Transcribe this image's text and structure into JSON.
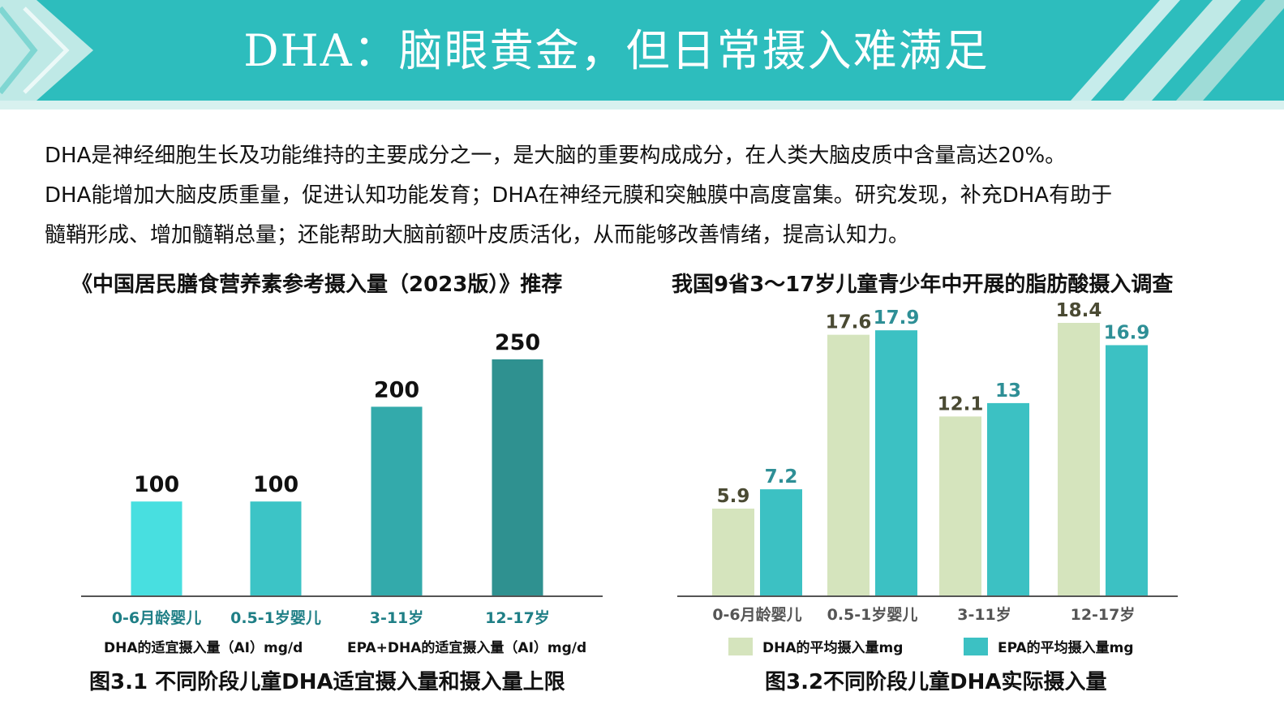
{
  "header": {
    "title": "DHA：脑眼黄金，但日常摄入难满足",
    "colors": {
      "band": "#2dbdbd",
      "stripe_light": "#bfe9e6",
      "chevron": "#7fd6d2"
    }
  },
  "intro": {
    "lines": [
      "DHA是神经细胞生长及功能维持的主要成分之一，是大脑的重要构成成分，在人类大脑皮质中含量高达20%。",
      "DHA能增加大脑皮质重量，促进认知功能发育；DHA在神经元膜和突触膜中高度富集。研究发现，补充DHA有助于",
      "髓鞘形成、增加髓鞘总量；还能帮助大脑前额叶皮质活化，从而能够改善情绪，提高认知力。"
    ]
  },
  "chart_data": [
    {
      "type": "bar",
      "title": "《中国居民膳食营养素参考摄入量（2023版）》推荐",
      "categories": [
        "0-6月龄婴儿",
        "0.5-1岁婴儿",
        "3-11岁",
        "12-17岁"
      ],
      "values": [
        100,
        100,
        200,
        250
      ],
      "value_labels": [
        "100",
        "100",
        "200",
        "250"
      ],
      "bar_colors": [
        "#48dfe0",
        "#3cc4c6",
        "#33aaab",
        "#2f9190"
      ],
      "ylim": [
        0,
        250
      ],
      "grid": false,
      "sub_labels": [
        "DHA的适宜摄入量（AI）mg/d",
        "EPA+DHA的适宜摄入量（AI）mg/d"
      ],
      "caption": "图3.1 不同阶段儿童DHA适宜摄入量和摄入量上限",
      "category_color": "#1f7f86"
    },
    {
      "type": "bar",
      "title": "我国9省3～17岁儿童青少年中开展的脂肪酸摄入调查",
      "categories": [
        "0-6月龄婴儿",
        "0.5-1岁婴儿",
        "3-11岁",
        "12-17岁"
      ],
      "series": [
        {
          "name": "DHA的平均摄入量mg",
          "values": [
            5.9,
            17.6,
            12.1,
            18.4
          ],
          "labels": [
            "5.9",
            "17.6",
            "12.1",
            "18.4"
          ],
          "color": "#d5e4bd",
          "label_color": "#4a4a33"
        },
        {
          "name": "EPA的平均摄入量mg",
          "values": [
            7.2,
            17.9,
            13,
            16.9
          ],
          "labels": [
            "7.2",
            "17.9",
            "13",
            "16.9"
          ],
          "color": "#3cc1c3",
          "label_color": "#2e8f96"
        }
      ],
      "ylim": [
        0,
        18.4
      ],
      "grid": false,
      "legend": "bottom",
      "caption": "图3.2不同阶段儿童DHA实际摄入量",
      "category_color": "#555555"
    }
  ]
}
